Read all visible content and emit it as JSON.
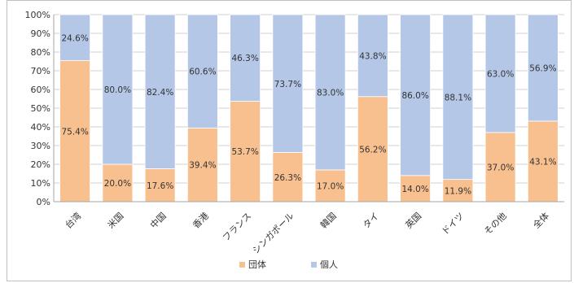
{
  "chart_data": {
    "type": "bar",
    "stacked": true,
    "percent": true,
    "categories": [
      "台湾",
      "米国",
      "中国",
      "香港",
      "フランス",
      "シンガポール",
      "韓国",
      "タイ",
      "英国",
      "ドイツ",
      "その他",
      "全体"
    ],
    "series": [
      {
        "name": "団体",
        "color": "#f8c08f",
        "values": [
          75.4,
          20.0,
          17.6,
          39.4,
          53.7,
          26.3,
          17.0,
          56.2,
          14.0,
          11.9,
          37.0,
          43.1
        ],
        "labels": [
          "75.4%",
          "20.0%",
          "17.6%",
          "39.4%",
          "53.7%",
          "26.3%",
          "17.0%",
          "56.2%",
          "14.0%",
          "11.9%",
          "37.0%",
          "43.1%"
        ]
      },
      {
        "name": "個人",
        "color": "#b4c7e7",
        "values": [
          24.6,
          80.0,
          82.4,
          60.6,
          46.3,
          73.7,
          83.0,
          43.8,
          86.0,
          88.1,
          63.0,
          56.9
        ],
        "labels": [
          "24.6%",
          "80.0%",
          "82.4%",
          "60.6%",
          "46.3%",
          "73.7%",
          "83.0%",
          "43.8%",
          "86.0%",
          "88.1%",
          "63.0%",
          "56.9%"
        ]
      }
    ],
    "yticks": [
      "0%",
      "10%",
      "20%",
      "30%",
      "40%",
      "50%",
      "60%",
      "70%",
      "80%",
      "90%",
      "100%"
    ],
    "ylim": [
      0,
      100
    ],
    "grid": true,
    "legend_position": "bottom"
  }
}
